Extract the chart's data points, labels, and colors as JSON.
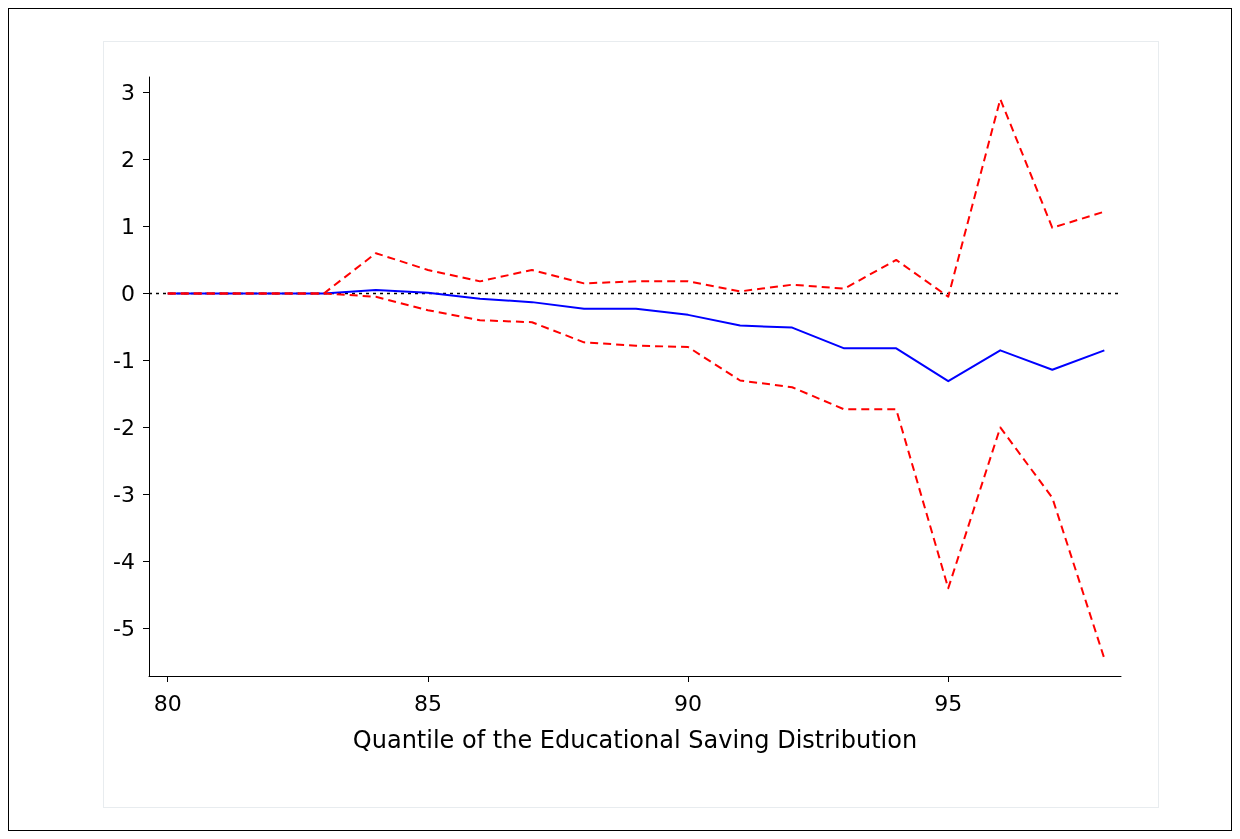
{
  "chart_data": {
    "type": "line",
    "xlabel": "Quantile of the Educational Saving Distribution",
    "x": [
      80,
      81,
      82,
      83,
      84,
      85,
      86,
      87,
      88,
      89,
      90,
      91,
      92,
      93,
      94,
      95,
      96,
      97,
      98
    ],
    "series": [
      {
        "color": "#0000ff",
        "line_style": "solid",
        "values": [
          0,
          0,
          0,
          0,
          0.05,
          0.01,
          -0.08,
          -0.13,
          -0.23,
          -0.23,
          -0.32,
          -0.48,
          -0.51,
          -0.82,
          -0.82,
          -1.31,
          -0.85,
          -1.14,
          -0.85
        ]
      },
      {
        "color": "#ff0000",
        "line_style": "dashed",
        "values": [
          0,
          0,
          0,
          0,
          0.6,
          0.35,
          0.18,
          0.35,
          0.15,
          0.18,
          0.18,
          0.03,
          0.13,
          0.07,
          0.5,
          -0.05,
          2.9,
          0.98,
          1.22
        ]
      },
      {
        "color": "#ff0000",
        "line_style": "dashed",
        "values": [
          0,
          0,
          0,
          0,
          -0.05,
          -0.25,
          -0.4,
          -0.43,
          -0.73,
          -0.78,
          -0.8,
          -1.3,
          -1.4,
          -1.73,
          -1.73,
          -4.4,
          -2.0,
          -3.05,
          -5.45
        ]
      }
    ],
    "xlim": [
      79.64,
      98.32
    ],
    "xticks": [
      80,
      85,
      90,
      95
    ],
    "ylim": [
      -5.71,
      3.23
    ],
    "yticks": [
      -5,
      -4,
      -3,
      -2,
      -1,
      0,
      1,
      2,
      3
    ],
    "ref_lines": [
      {
        "axis": "y",
        "value": 0,
        "color": "#000000",
        "line_style": "dotted"
      }
    ],
    "grid": false,
    "marker": "none"
  }
}
